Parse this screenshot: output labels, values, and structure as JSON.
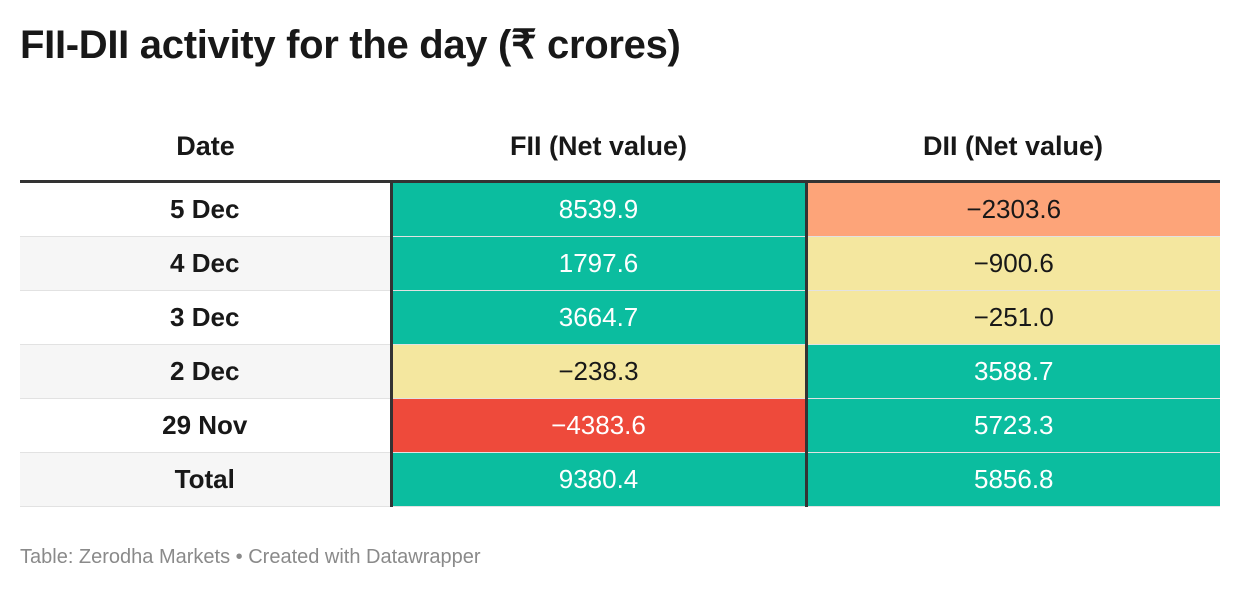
{
  "title": "FII-DII activity for the day (₹ crores)",
  "columns": [
    "Date",
    "FII (Net value)",
    "DII (Net value)"
  ],
  "colors": {
    "strong_positive": "#0bbd9f",
    "slight_negative": "#f4e79f",
    "moderate_negative": "#fda479",
    "strong_negative": "#ee4a3b"
  },
  "chart_data": {
    "type": "table",
    "title": "FII-DII activity for the day (₹ crores)",
    "columns": [
      "Date",
      "FII (Net value)",
      "DII (Net value)"
    ],
    "rows": [
      {
        "date": "5 Dec",
        "fii": "8539.9",
        "dii": "−2303.6",
        "fii_color": "#0bbd9f",
        "dii_color": "#fda479"
      },
      {
        "date": "4 Dec",
        "fii": "1797.6",
        "dii": "−900.6",
        "fii_color": "#0bbd9f",
        "dii_color": "#f4e79f"
      },
      {
        "date": "3 Dec",
        "fii": "3664.7",
        "dii": "−251.0",
        "fii_color": "#0bbd9f",
        "dii_color": "#f4e79f"
      },
      {
        "date": "2 Dec",
        "fii": "−238.3",
        "dii": "3588.7",
        "fii_color": "#f4e79f",
        "dii_color": "#0bbd9f"
      },
      {
        "date": "29 Nov",
        "fii": "−4383.6",
        "dii": "5723.3",
        "fii_color": "#ee4a3b",
        "dii_color": "#0bbd9f"
      },
      {
        "date": "Total",
        "fii": "9380.4",
        "dii": "5856.8",
        "fii_color": "#0bbd9f",
        "dii_color": "#0bbd9f"
      }
    ]
  },
  "footer": "Table: Zerodha Markets • Created with Datawrapper"
}
